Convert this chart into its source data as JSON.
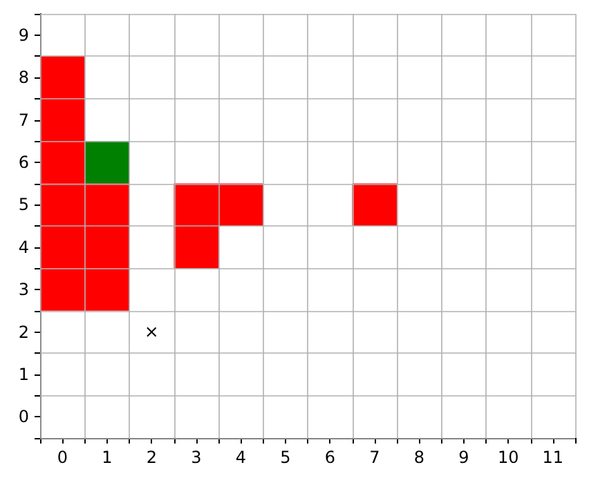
{
  "chart_data": {
    "type": "scatter",
    "series": [
      {
        "color": "#ff0000",
        "marker": "square",
        "x": [
          0,
          0,
          0,
          0,
          0,
          0,
          1,
          1,
          1,
          3,
          3,
          4,
          7
        ],
        "values": [
          3,
          4,
          5,
          6,
          7,
          8,
          3,
          4,
          5,
          4,
          5,
          5,
          5
        ]
      },
      {
        "color": "#008000",
        "marker": "square",
        "x": [
          1
        ],
        "values": [
          6
        ]
      },
      {
        "color": "#000000",
        "marker": "cross",
        "x": [
          2
        ],
        "values": [
          2
        ]
      }
    ],
    "xlim": [
      -0.5,
      11.5
    ],
    "xticks": [
      {
        "value": -0.5,
        "label": null
      },
      0,
      {
        "value": 0.5,
        "label": null
      },
      1,
      {
        "value": 1.5,
        "label": null
      },
      2,
      {
        "value": 2.5,
        "label": null
      },
      3,
      {
        "value": 3.5,
        "label": null
      },
      4,
      {
        "value": 4.5,
        "label": null
      },
      5,
      {
        "value": 5.5,
        "label": null
      },
      6,
      {
        "value": 6.5,
        "label": null
      },
      7,
      {
        "value": 7.5,
        "label": null
      },
      8,
      {
        "value": 8.5,
        "label": null
      },
      9,
      {
        "value": 9.5,
        "label": null
      },
      10,
      {
        "value": 10.5,
        "label": null
      },
      11,
      {
        "value": 11.5,
        "label": null
      }
    ],
    "ylim": [
      -0.5,
      9.5
    ],
    "yticks": [
      {
        "value": -0.5,
        "label": null
      },
      0,
      {
        "value": 0.5,
        "label": null
      },
      1,
      {
        "value": 1.5,
        "label": null
      },
      2,
      {
        "value": 2.5,
        "label": null
      },
      3,
      {
        "value": 3.5,
        "label": null
      },
      4,
      {
        "value": 4.5,
        "label": null
      },
      5,
      {
        "value": 5.5,
        "label": null
      },
      6,
      {
        "value": 6.5,
        "label": null
      },
      7,
      {
        "value": 7.5,
        "label": null
      },
      8,
      {
        "value": 8.5,
        "label": null
      },
      9,
      {
        "value": 9.5,
        "label": null
      }
    ],
    "grid": true
  }
}
